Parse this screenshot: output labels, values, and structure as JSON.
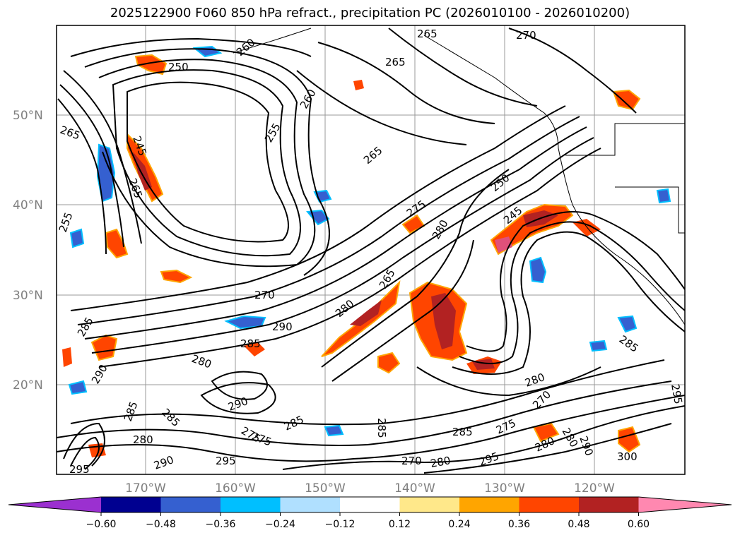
{
  "title": "2025122900 F060 850 hPa refract., precipitation PC (2026010100 - 2026010200)",
  "latitude_labels": [
    "50°N",
    "40°N",
    "30°N",
    "20°N"
  ],
  "longitude_labels": [
    "170°W",
    "160°W",
    "150°W",
    "140°W",
    "130°W",
    "120°W"
  ],
  "contour_labels": [
    "265",
    "270",
    "265",
    "250",
    "260",
    "255",
    "265",
    "245",
    "265",
    "265",
    "250",
    "245",
    "275",
    "280",
    "265",
    "270",
    "280",
    "290",
    "285",
    "280",
    "290",
    "285",
    "285",
    "280",
    "290",
    "275",
    "285",
    "295",
    "295",
    "280",
    "270",
    "275",
    "280",
    "285",
    "300",
    "285",
    "290",
    "295",
    "275",
    "285",
    "280",
    "290",
    "260",
    "255",
    "285",
    "295",
    "280",
    "270"
  ],
  "colorbar": {
    "ticks": [
      "−0.60",
      "−0.48",
      "−0.36",
      "−0.24",
      "−0.12",
      "0.12",
      "0.24",
      "0.36",
      "0.48",
      "0.60"
    ],
    "colors": [
      "#9b30d0",
      "#000090",
      "#3560d0",
      "#00bfff",
      "#b0e0ff",
      "#ffffff",
      "#ffe88a",
      "#ffa500",
      "#ff4500",
      "#b22222",
      "#ff88b0"
    ]
  }
}
